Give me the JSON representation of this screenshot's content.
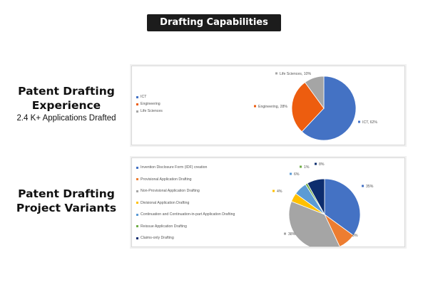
{
  "page": {
    "title": "Drafting Capabilities"
  },
  "section1": {
    "heading_line1": "Patent Drafting",
    "heading_line2": "Experience",
    "subheading": "2.4 K+ Applications Drafted"
  },
  "section2": {
    "heading_line1": "Patent Drafting",
    "heading_line2": "Project Variants"
  },
  "chart_data": [
    {
      "type": "pie",
      "title": "",
      "legend_placement": "left",
      "categories": [
        "ICT",
        "Engineering",
        "Life Sciences"
      ],
      "values": [
        62,
        28,
        10
      ],
      "data_labels": [
        "ICT, 62%",
        "Engineering, 28%",
        "Life Sciences, 10%"
      ],
      "colors": [
        "#4472c4",
        "#ed5d0f",
        "#a5a5a5"
      ]
    },
    {
      "type": "pie",
      "title": "",
      "legend_placement": "left",
      "categories": [
        "Invention Disclosure Form (IDF) creation",
        "Provisional Application Drafting",
        "Non-Provisional Application Drafting",
        "Divisional Application Drafting",
        "Continuation and Continuation-in-part Application Drafting",
        "Reissue Application Drafting",
        "Claims-only Drafting"
      ],
      "values": [
        35,
        8,
        38,
        4,
        6,
        1,
        8
      ],
      "data_labels": [
        "35%",
        "8%",
        "38%",
        "4%",
        "6%",
        "1%",
        "8%"
      ],
      "colors": [
        "#4472c4",
        "#ed7d31",
        "#a5a5a5",
        "#ffc000",
        "#5b9bd5",
        "#70ad47",
        "#0d2d6e"
      ]
    }
  ]
}
